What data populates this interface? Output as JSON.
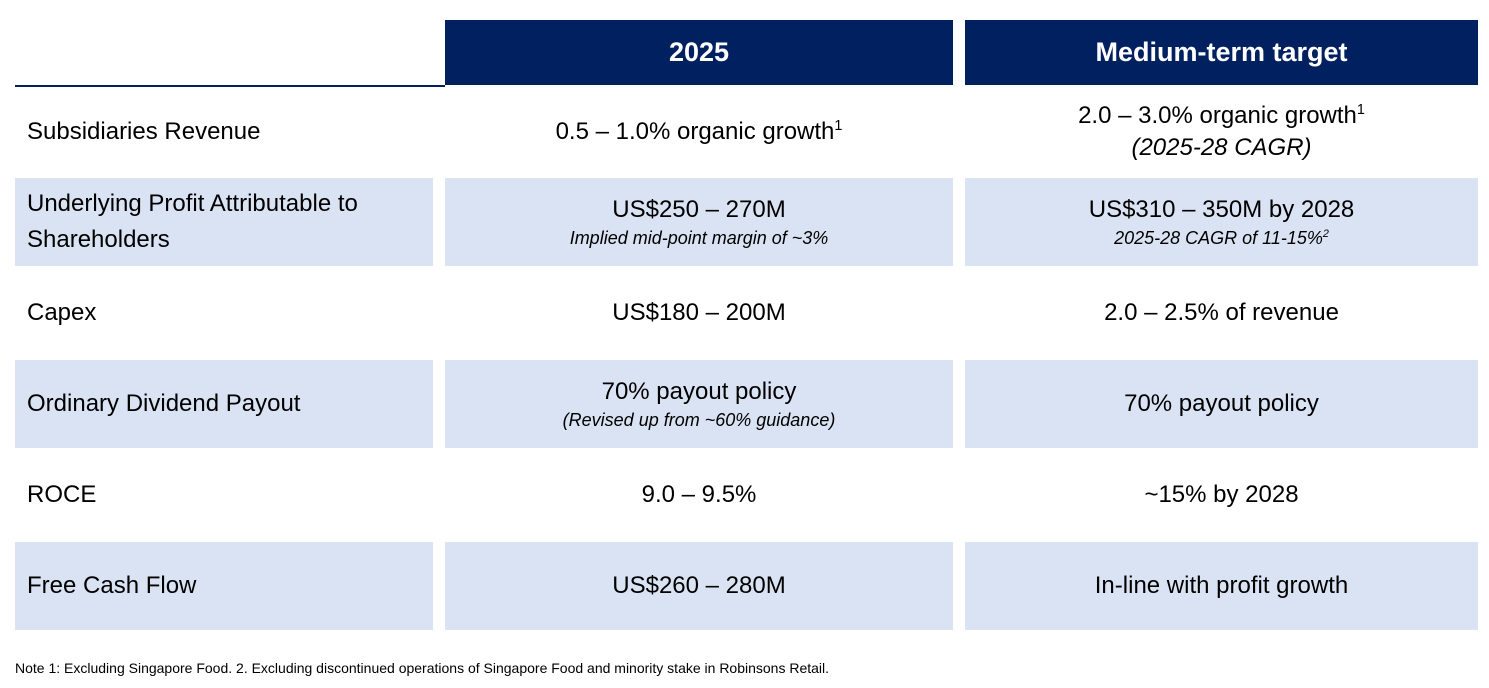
{
  "table": {
    "columns": [
      "2025",
      "Medium-term target"
    ],
    "rows": [
      {
        "label": "Subsidiaries Revenue",
        "cells": [
          {
            "main": "0.5 – 1.0% organic growth",
            "sup": "1"
          },
          {
            "main": "2.0 – 3.0% organic growth",
            "sup": "1",
            "note": "(2025-28 CAGR)"
          }
        ]
      },
      {
        "label": "Underlying Profit Attributable to Shareholders",
        "cells": [
          {
            "main": "US$250 – 270M",
            "note": "Implied mid-point margin of ~3%"
          },
          {
            "main": "US$310 – 350M by 2028",
            "note": "2025-28 CAGR of 11-15%",
            "note_sup": "2"
          }
        ]
      },
      {
        "label": "Capex",
        "cells": [
          {
            "main": "US$180 – 200M"
          },
          {
            "main": "2.0 – 2.5% of revenue"
          }
        ]
      },
      {
        "label": "Ordinary Dividend Payout",
        "cells": [
          {
            "main": "70% payout policy",
            "note": "(Revised up from ~60% guidance)"
          },
          {
            "main": "70% payout policy"
          }
        ]
      },
      {
        "label": "ROCE",
        "cells": [
          {
            "main": "9.0 – 9.5%"
          },
          {
            "main": "~15% by 2028"
          }
        ]
      },
      {
        "label": "Free Cash Flow",
        "cells": [
          {
            "main": "US$260 – 280M"
          },
          {
            "main": "In-line with profit growth"
          }
        ]
      }
    ]
  },
  "footnote": "Note 1: Excluding Singapore Food. 2. Excluding discontinued operations of Singapore Food and minority stake in Robinsons Retail."
}
